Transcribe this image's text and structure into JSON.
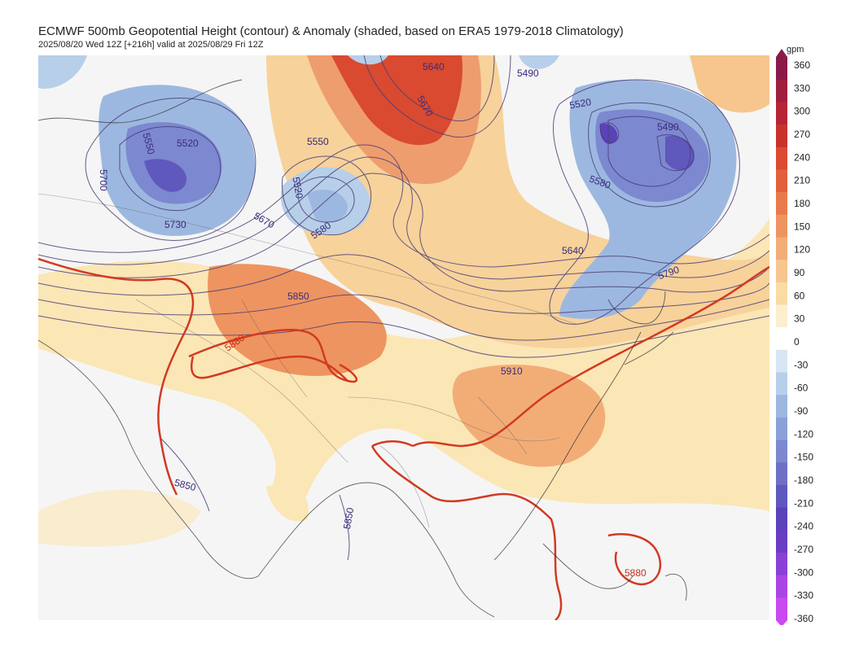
{
  "header": {
    "title": "ECMWF 500mb Geopotential Height (contour) & Anomaly (shaded, based on ERA5 1979-2018 Climatology)",
    "subtitle": "2025/08/20 Wed 12Z [+216h] valid at 2025/08/29 Fri 12Z"
  },
  "legend": {
    "unit": "gpm",
    "ticks": [
      "360",
      "330",
      "300",
      "270",
      "240",
      "210",
      "180",
      "150",
      "120",
      "90",
      "60",
      "30",
      "0",
      "-30",
      "-60",
      "-90",
      "-120",
      "-150",
      "-180",
      "-210",
      "-240",
      "-270",
      "-300",
      "-330",
      "-360"
    ],
    "colors": [
      "#8a1a4a",
      "#a01e3e",
      "#b62536",
      "#c9322b",
      "#d94a30",
      "#e2613c",
      "#e97a4c",
      "#ee9460",
      "#f2ad77",
      "#f6c68e",
      "#f9dca4",
      "#fcefd0",
      "#ffffff",
      "#d7e6f3",
      "#b7cfe9",
      "#9db8e0",
      "#8ba0d8",
      "#7c88cf",
      "#6e70c6",
      "#5f58bd",
      "#5a43b8",
      "#6a3cc4",
      "#8b3fd6",
      "#aa45e4",
      "#c84af0"
    ]
  },
  "contour_labels": [
    {
      "text": "5640",
      "color": "#3a2a7a"
    },
    {
      "text": "5670",
      "color": "#3a2a7a"
    },
    {
      "text": "5490",
      "color": "#3a2a7a"
    },
    {
      "text": "5550",
      "color": "#3a2a7a"
    },
    {
      "text": "5520",
      "color": "#3a2a7a"
    },
    {
      "text": "5550",
      "color": "#3a2a7a"
    },
    {
      "text": "5520",
      "color": "#3a2a7a"
    },
    {
      "text": "5580",
      "color": "#3a2a7a"
    },
    {
      "text": "5700",
      "color": "#3a2a7a"
    },
    {
      "text": "5730",
      "color": "#3a2a7a"
    },
    {
      "text": "5670",
      "color": "#3a2a7a"
    },
    {
      "text": "5520",
      "color": "#3a2a7a"
    },
    {
      "text": "5490",
      "color": "#3a2a7a"
    },
    {
      "text": "5580",
      "color": "#3a2a7a"
    },
    {
      "text": "5640",
      "color": "#3a2a7a"
    },
    {
      "text": "5790",
      "color": "#3a2a7a"
    },
    {
      "text": "5850",
      "color": "#3a2a7a"
    },
    {
      "text": "5880",
      "color": "#c62e1b"
    },
    {
      "text": "5910",
      "color": "#3a2a7a"
    },
    {
      "text": "5850",
      "color": "#3a2a7a"
    },
    {
      "text": "5850",
      "color": "#3a2a7a"
    },
    {
      "text": "5880",
      "color": "#c62e1b"
    }
  ]
}
